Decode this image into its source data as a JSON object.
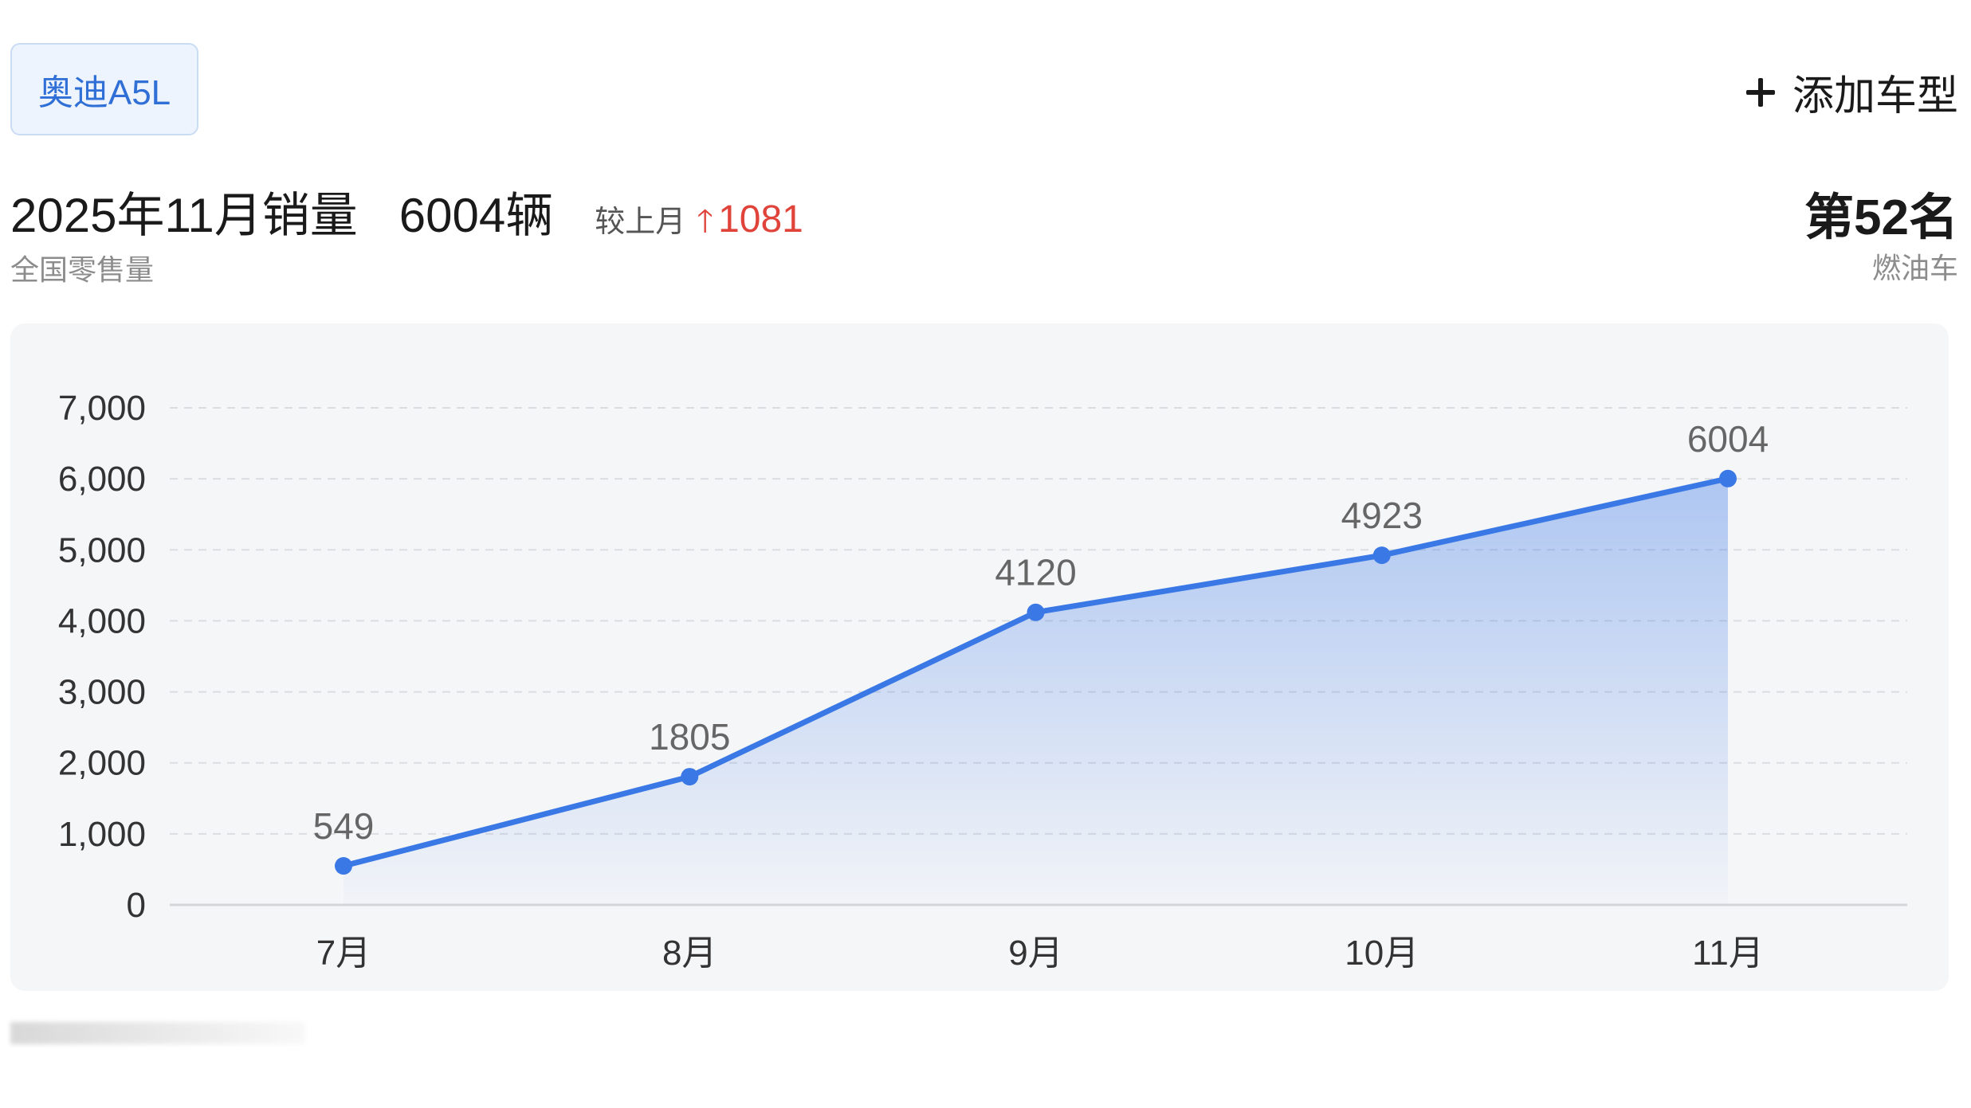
{
  "header": {
    "model_chip": "奥迪A5L",
    "add_model_label": "添加车型"
  },
  "summary": {
    "title": "2025年11月销量",
    "volume": "6004辆",
    "mom_label": "较上月",
    "mom_value": "1081",
    "subtitle": "全国零售量",
    "rank": "第52名",
    "category": "燃油车"
  },
  "colors": {
    "accent": "#3a78e6",
    "up": "#e0433a",
    "chip_bg": "#eef4fd"
  },
  "icons": {
    "add": "plus-icon",
    "trend": "arrow-up-icon"
  },
  "chart_data": {
    "type": "area",
    "categories": [
      "7月",
      "8月",
      "9月",
      "10月",
      "11月"
    ],
    "series": [
      {
        "values": [
          549,
          1805,
          4120,
          4923,
          6004
        ]
      }
    ],
    "ylim": [
      0,
      7000
    ],
    "yticks": [
      0,
      1000,
      2000,
      3000,
      4000,
      5000,
      6000,
      7000
    ],
    "ytick_labels": [
      "0",
      "1,000",
      "2,000",
      "3,000",
      "4,000",
      "5,000",
      "6,000",
      "7,000"
    ],
    "data_labels": [
      "549",
      "1805",
      "4120",
      "4923",
      "6004"
    ],
    "grid": true,
    "legend": false
  }
}
